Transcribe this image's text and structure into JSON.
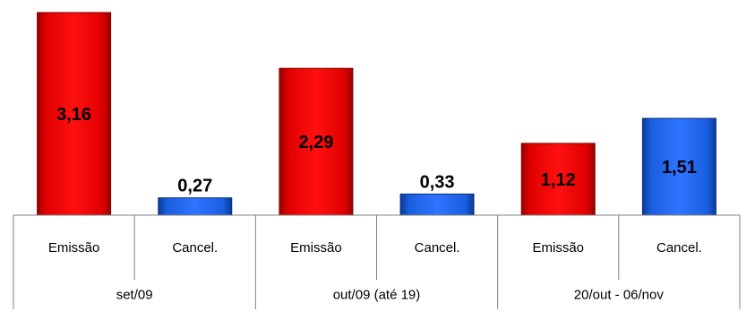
{
  "chart_data": {
    "type": "bar",
    "ylim": [
      0,
      3.2
    ],
    "groups": [
      {
        "label": "set/09",
        "bars": [
          {
            "category": "Emissão",
            "value": 3.16,
            "label": "3,16",
            "color": "#e00000"
          },
          {
            "category": "Cancel.",
            "value": 0.27,
            "label": "0,27",
            "color": "#1a5fe0"
          }
        ]
      },
      {
        "label": "out/09 (até 19)",
        "bars": [
          {
            "category": "Emissão",
            "value": 2.29,
            "label": "2,29",
            "color": "#e00000"
          },
          {
            "category": "Cancel.",
            "value": 0.33,
            "label": "0,33",
            "color": "#1a5fe0"
          }
        ]
      },
      {
        "label": "20/out - 06/nov",
        "bars": [
          {
            "category": "Emissão",
            "value": 1.12,
            "label": "1,12",
            "color": "#e00000"
          },
          {
            "category": "Cancel.",
            "value": 1.51,
            "label": "1,51",
            "color": "#1a5fe0"
          }
        ]
      }
    ]
  }
}
